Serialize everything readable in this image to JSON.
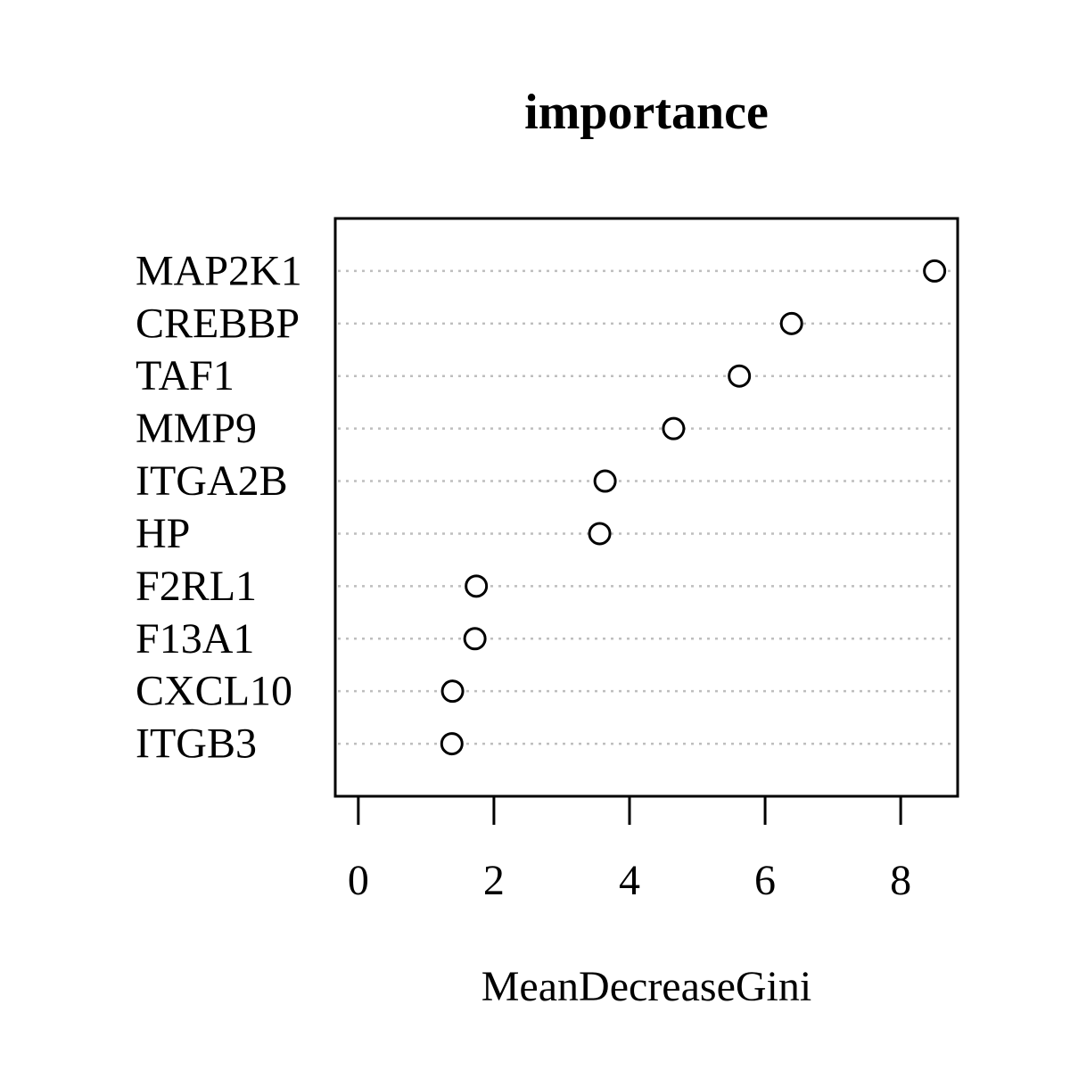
{
  "chart_data": {
    "type": "scatter",
    "title": "importance",
    "xlabel": "MeanDecreaseGini",
    "ylabel": "",
    "xlim": [
      -0.34,
      8.84
    ],
    "xticks": [
      0,
      2,
      4,
      6,
      8
    ],
    "grid": "dotted horizontal guide per category",
    "legend": "none",
    "categories": [
      "MAP2K1",
      "CREBBP",
      "TAF1",
      "MMP9",
      "ITGA2B",
      "HP",
      "F2RL1",
      "F13A1",
      "CXCL10",
      "ITGB3"
    ],
    "values": [
      8.5,
      6.39,
      5.62,
      4.65,
      3.64,
      3.56,
      1.74,
      1.72,
      1.39,
      1.38
    ],
    "colors": {
      "axis": "#000000",
      "guide": "#bebebe",
      "marker_stroke": "#000000",
      "marker_fill": "#ffffff"
    }
  }
}
